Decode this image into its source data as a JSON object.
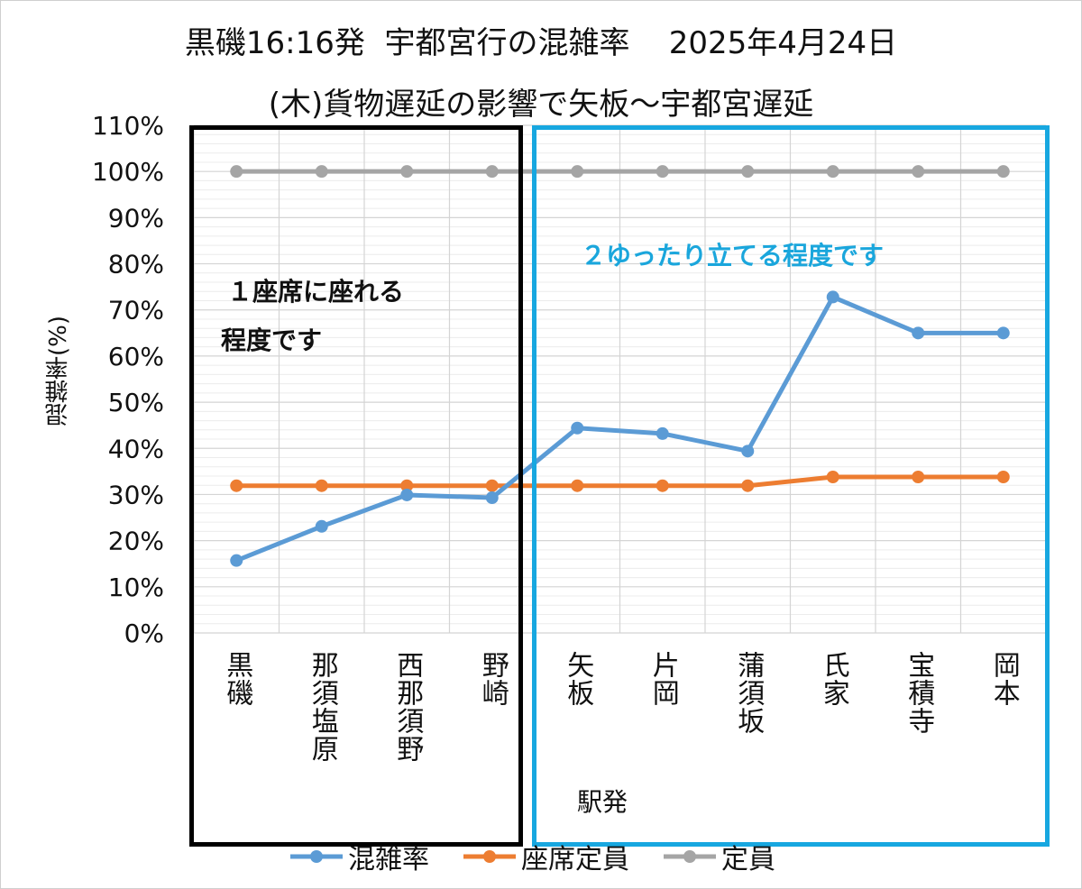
{
  "title_line1": "黒磯16:16発  宇都宮行の混雑率    2025年4月24日",
  "title_line2": "(木)貨物遅延の影響で矢板～宇都宮遅延",
  "annotations": {
    "note1_line1": "１座席に座れる",
    "note1_line2": "程度です",
    "note2": "２ゆったり立てる程度です"
  },
  "colors": {
    "congestion": "#5b9bd5",
    "seat_capacity": "#ed7d31",
    "capacity": "#a5a5a5",
    "box1": "#000000",
    "box2": "#17a7e0"
  },
  "chart_data": {
    "type": "line",
    "categories": [
      "黒磯",
      "那須塩原",
      "西那須野",
      "野崎",
      "矢板",
      "片岡",
      "蒲須坂",
      "氏家",
      "宝積寺",
      "岡本"
    ],
    "series": [
      {
        "name": "混雑率",
        "values": [
          15.7,
          23.1,
          29.9,
          29.3,
          44.4,
          43.2,
          39.4,
          72.8,
          65.0,
          65.0
        ]
      },
      {
        "name": "座席定員",
        "values": [
          31.9,
          31.9,
          31.9,
          31.9,
          31.9,
          31.9,
          31.9,
          33.8,
          33.8,
          33.8
        ]
      },
      {
        "name": "定員",
        "values": [
          100,
          100,
          100,
          100,
          100,
          100,
          100,
          100,
          100,
          100
        ]
      }
    ],
    "xlabel": "駅発",
    "ylabel": "混雑率(%)",
    "ylim": [
      0,
      110
    ],
    "yticks": [
      "0%",
      "10%",
      "20%",
      "30%",
      "40%",
      "50%",
      "60%",
      "70%",
      "80%",
      "90%",
      "100%",
      "110%"
    ],
    "grid": true,
    "legend": "bottom"
  }
}
